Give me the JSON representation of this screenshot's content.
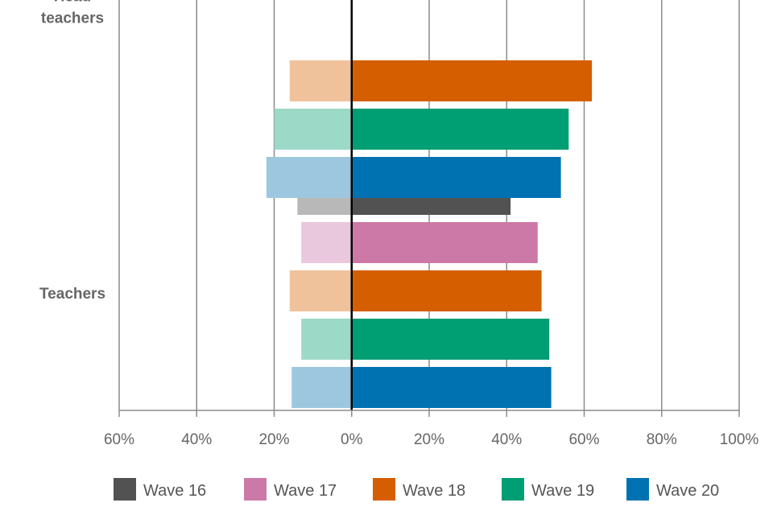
{
  "chart_data": {
    "type": "bar",
    "orientation": "horizontal-diverging",
    "categories": [
      {
        "label_lines": [
          "Head",
          "teachers"
        ]
      },
      {
        "label_lines": [
          "Teachers"
        ]
      }
    ],
    "series": [
      {
        "name": "Wave 16",
        "color": "#525252",
        "light_color": "#b8b8b8",
        "left": [
          null,
          -14
        ],
        "right": [
          null,
          41
        ]
      },
      {
        "name": "Wave 17",
        "color": "#cc79a7",
        "light_color": "#e9c7dc",
        "left": [
          null,
          -13
        ],
        "right": [
          null,
          48
        ]
      },
      {
        "name": "Wave 18",
        "color": "#d55e00",
        "light_color": "#f0c29c",
        "left": [
          -16,
          -16
        ],
        "right": [
          62,
          49
        ]
      },
      {
        "name": "Wave 19",
        "color": "#009e73",
        "light_color": "#9cd9c7",
        "left": [
          -20,
          -13
        ],
        "right": [
          56,
          51
        ]
      },
      {
        "name": "Wave 20",
        "color": "#0072b2",
        "light_color": "#9dc7df",
        "left": [
          -22,
          -15.5
        ],
        "right": [
          54,
          51.5
        ]
      }
    ],
    "x_ticks": [
      "60%",
      "40%",
      "20%",
      "0%",
      "20%",
      "40%",
      "60%",
      "80%",
      "100%"
    ],
    "xlim": [
      -60,
      100
    ],
    "grid": true,
    "legend_position": "bottom"
  }
}
